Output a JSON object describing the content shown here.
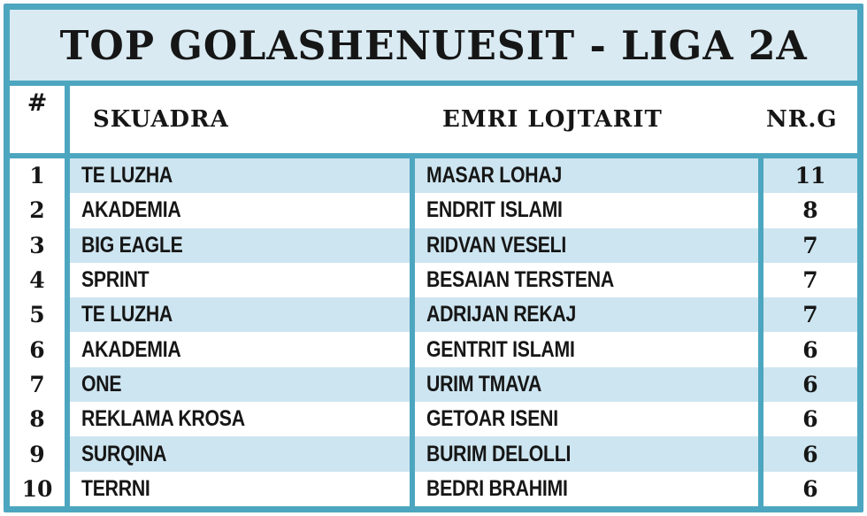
{
  "title": "TOP GOLASHENUESIT - LIGA 2A",
  "columns": {
    "rank": "#",
    "team": "SKUADRA",
    "player": "EMRI LOJTARIT",
    "goals": "NR.G"
  },
  "rows": [
    {
      "rank": "1",
      "team": "TE LUZHA",
      "player": "MASAR LOHAJ",
      "goals": "11"
    },
    {
      "rank": "2",
      "team": "AKADEMIA",
      "player": "ENDRIT ISLAMI",
      "goals": "8"
    },
    {
      "rank": "3",
      "team": "BIG EAGLE",
      "player": "RIDVAN VESELI",
      "goals": "7"
    },
    {
      "rank": "4",
      "team": "SPRINT",
      "player": "BESAIAN TERSTENA",
      "goals": "7"
    },
    {
      "rank": "5",
      "team": "TE LUZHA",
      "player": "ADRIJAN REKAJ",
      "goals": "7"
    },
    {
      "rank": "6",
      "team": "AKADEMIA",
      "player": "GENTRIT ISLAMI",
      "goals": "6"
    },
    {
      "rank": "7",
      "team": "ONE",
      "player": "URIM TMAVA",
      "goals": "6"
    },
    {
      "rank": "8",
      "team": "REKLAMA KROSA",
      "player": "GETOAR ISENI",
      "goals": "6"
    },
    {
      "rank": "9",
      "team": "SURQINA",
      "player": "BURIM DELOLLI",
      "goals": "6"
    },
    {
      "rank": "10",
      "team": "TERRNI",
      "player": "BEDRI BRAHIMI",
      "goals": "6"
    }
  ],
  "colors": {
    "teal_border": "#4da6c0",
    "title_background": "#d9eaf2",
    "row_stripe": "#cde5f0",
    "text": "#161616"
  }
}
